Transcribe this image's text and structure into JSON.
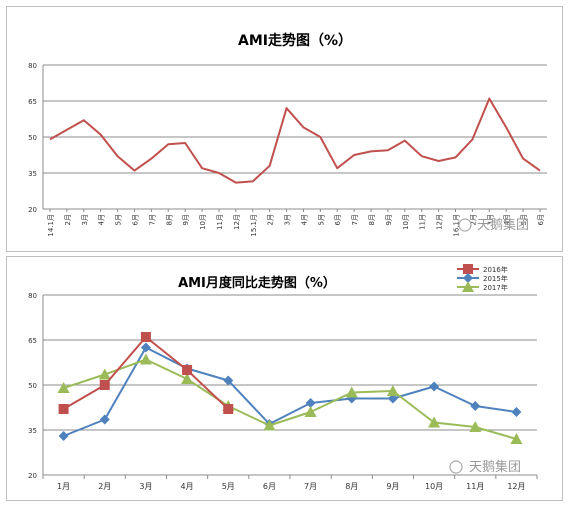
{
  "watermark": "天鹅集团",
  "chart_data": [
    {
      "type": "line",
      "title": "AMI走势图（%）",
      "ylim": [
        20,
        80
      ],
      "yticks": [
        "20",
        "35",
        "50",
        "65",
        "80"
      ],
      "x": [
        "14.1月",
        "2月",
        "3月",
        "4月",
        "5月",
        "6月",
        "7月",
        "8月",
        "9月",
        "10月",
        "11月",
        "12月",
        "15.1月",
        "2月",
        "3月",
        "4月",
        "5月",
        "6月",
        "7月",
        "8月",
        "9月",
        "10月",
        "11月",
        "12月",
        "16.1月",
        "2月",
        "3月",
        "4月",
        "5月",
        "6月"
      ],
      "series": [
        {
          "color": "#c0504d",
          "values": [
            49,
            53,
            57,
            51,
            42,
            36,
            41,
            47,
            47.5,
            37,
            35,
            31,
            31.5,
            38,
            62,
            54,
            50,
            37,
            42.5,
            44,
            44.5,
            48.5,
            42,
            40,
            41.5,
            49,
            66,
            54,
            41,
            36
          ]
        }
      ],
      "grid": true,
      "legend": "none"
    },
    {
      "type": "line",
      "title": "AMI月度同比走势图（%）",
      "ylim": [
        20,
        80
      ],
      "yticks": [
        "20",
        "35",
        "50",
        "65",
        "80"
      ],
      "categories": [
        "1月",
        "2月",
        "3月",
        "4月",
        "5月",
        "6月",
        "7月",
        "8月",
        "9月",
        "10月",
        "11月",
        "12月"
      ],
      "series": [
        {
          "name": "2016年",
          "color": "#c0504d",
          "marker": "square",
          "values": [
            42,
            50,
            66,
            55,
            42,
            null,
            null,
            null,
            null,
            null,
            null,
            null
          ]
        },
        {
          "name": "2015年",
          "color": "#4f81bd",
          "marker": "diamond",
          "values": [
            33,
            38.5,
            62.5,
            55.5,
            51.5,
            37,
            44,
            45.5,
            45.5,
            49.5,
            43,
            41
          ]
        },
        {
          "name": "2017年",
          "color": "#9bbb59",
          "marker": "triangle",
          "values": [
            49,
            53.5,
            58.5,
            52,
            43,
            36.5,
            41,
            47.5,
            48,
            37.5,
            36,
            32
          ]
        }
      ],
      "grid": true,
      "legend": "top-right"
    }
  ]
}
